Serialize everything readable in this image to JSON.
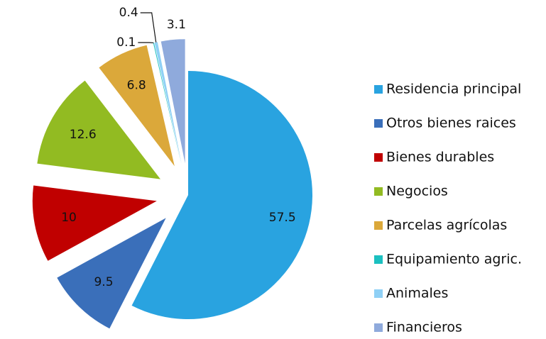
{
  "chart_data": {
    "type": "pie",
    "categories": [
      "Residencia principal",
      "Otros bienes raices",
      "Bienes durables",
      "Negocios",
      "Parcelas agrícolas",
      "Equipamiento agric.",
      "Animales",
      "Financieros"
    ],
    "values": [
      57.5,
      9.5,
      10,
      12.6,
      6.8,
      0.1,
      0.4,
      3.1
    ],
    "colors": [
      "#29a3e0",
      "#3a6fba",
      "#c00000",
      "#92bb22",
      "#dba83a",
      "#1bc0c0",
      "#8fd0f5",
      "#8faadc"
    ],
    "legend": "right"
  }
}
